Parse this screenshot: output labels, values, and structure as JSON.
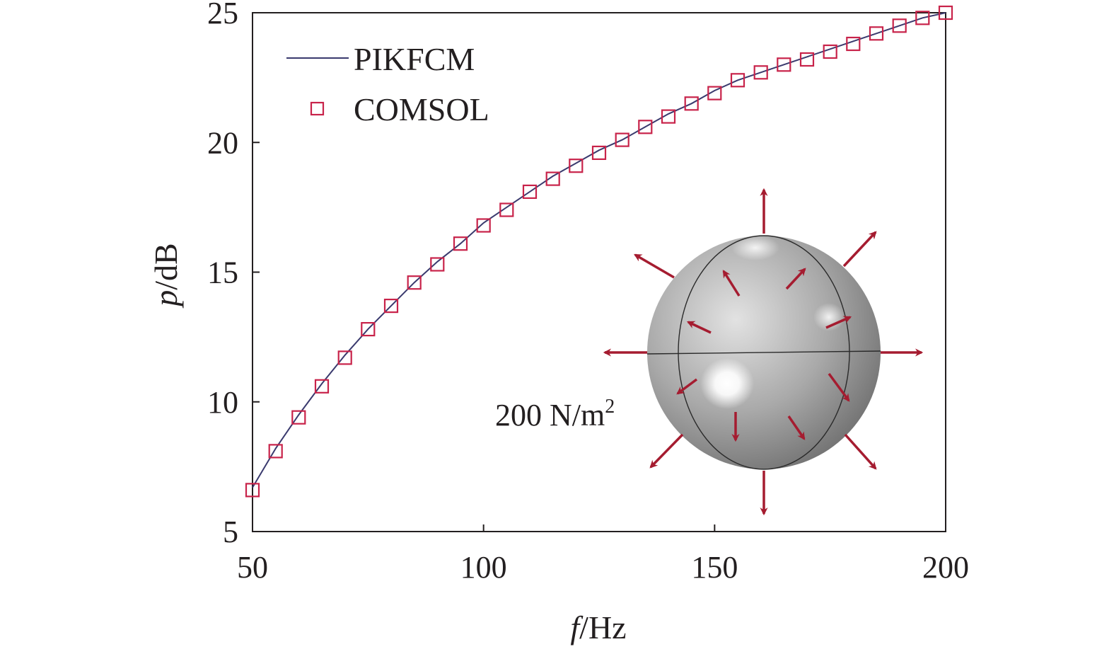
{
  "chart_data": {
    "type": "line",
    "xlabel_var": "f",
    "xlabel_unit": "/Hz",
    "ylabel_var": "p",
    "ylabel_unit": "/dB",
    "xlim": [
      50,
      200
    ],
    "ylim": [
      5,
      25
    ],
    "xticks": [
      50,
      100,
      150,
      200
    ],
    "yticks": [
      5,
      10,
      15,
      20,
      25
    ],
    "legend_position": "top-left",
    "series": [
      {
        "name": "PIKFCM",
        "kind": "line",
        "color": "#3a3a6e",
        "x": [
          50,
          55,
          60,
          65,
          70,
          75,
          80,
          85,
          90,
          95,
          100,
          105,
          110,
          115,
          120,
          125,
          130,
          135,
          140,
          145,
          150,
          155,
          160,
          165,
          170,
          175,
          180,
          185,
          190,
          195,
          200
        ],
        "values": [
          6.7,
          8.2,
          9.5,
          10.7,
          11.8,
          12.8,
          13.7,
          14.6,
          15.4,
          16.1,
          16.9,
          17.5,
          18.1,
          18.7,
          19.2,
          19.7,
          20.1,
          20.6,
          21.1,
          21.5,
          22.0,
          22.4,
          22.7,
          23.0,
          23.3,
          23.6,
          23.9,
          24.2,
          24.5,
          24.8,
          25.0
        ]
      },
      {
        "name": "COMSOL",
        "kind": "scatter",
        "marker": "square",
        "color": "#c8234a",
        "x": [
          50,
          55,
          60,
          65,
          70,
          75,
          80,
          85,
          90,
          95,
          100,
          105,
          110,
          115,
          120,
          125,
          130,
          135,
          140,
          145,
          150,
          155,
          160,
          165,
          170,
          175,
          180,
          185,
          190,
          195,
          200
        ],
        "values": [
          6.6,
          8.1,
          9.4,
          10.6,
          11.7,
          12.8,
          13.7,
          14.6,
          15.3,
          16.1,
          16.8,
          17.4,
          18.1,
          18.6,
          19.1,
          19.6,
          20.1,
          20.6,
          21.0,
          21.5,
          21.9,
          22.4,
          22.7,
          23.0,
          23.2,
          23.5,
          23.8,
          24.2,
          24.5,
          24.8,
          25.0
        ]
      }
    ],
    "inset": {
      "annotation": "200 N/m",
      "annotation_sup": "2",
      "arrow_color": "#a51c30"
    }
  }
}
